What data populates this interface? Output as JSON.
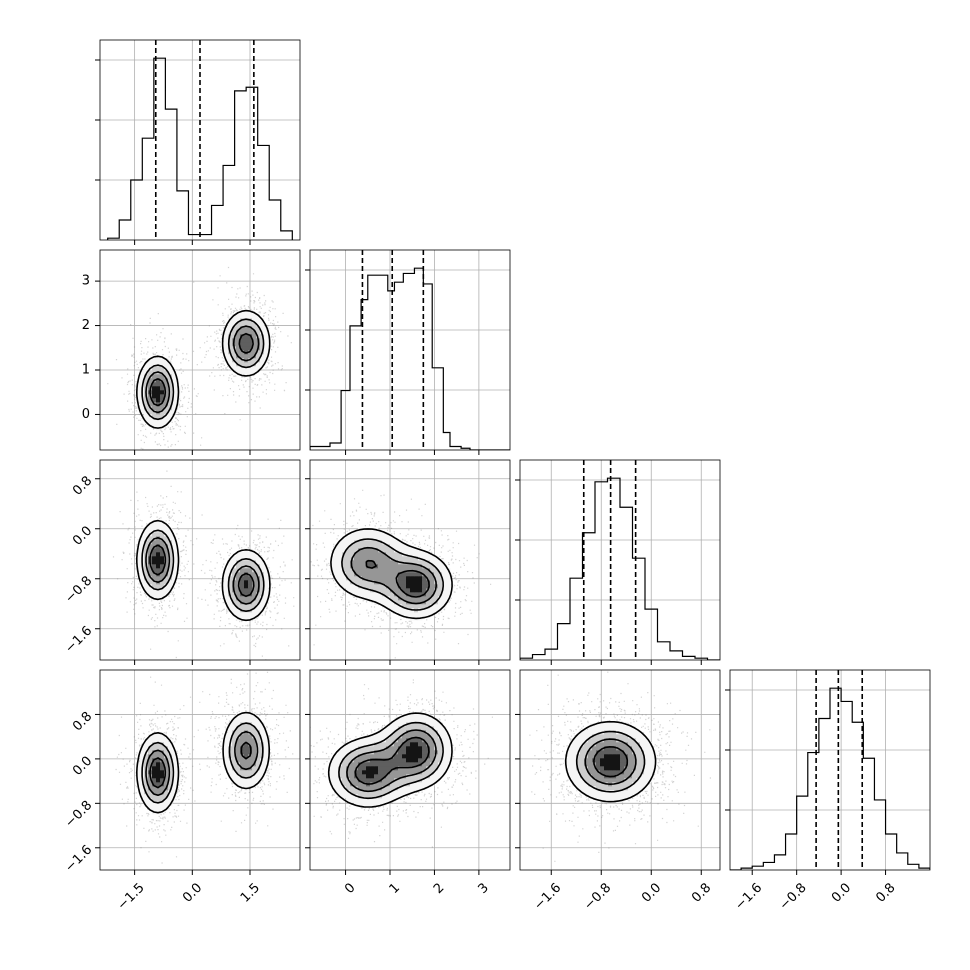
{
  "chart_data": {
    "type": "corner",
    "title": "",
    "grid": true,
    "colors": {
      "line": "#000000",
      "grid": "#b0b0b0",
      "points": "#808080"
    },
    "parameters": [
      {
        "index": 0,
        "range": [
          -2.4,
          2.8
        ],
        "ticks": [
          -1.5,
          0.0,
          1.5
        ],
        "tick_labels": [
          "−1.5",
          "0.0",
          "1.5"
        ],
        "quantiles": [
          -0.95,
          0.2,
          1.6
        ],
        "histogram": {
          "bin_edges": [
            -2.2,
            -1.9,
            -1.6,
            -1.3,
            -1.0,
            -0.7,
            -0.4,
            -0.1,
            0.2,
            0.5,
            0.8,
            1.1,
            1.4,
            1.7,
            2.0,
            2.3,
            2.6
          ],
          "counts": [
            0.1,
            1.1,
            3.3,
            5.6,
            10.0,
            7.2,
            2.7,
            0.3,
            0.3,
            1.9,
            4.1,
            8.2,
            8.4,
            5.2,
            2.2,
            0.5
          ]
        }
      },
      {
        "index": 1,
        "range": [
          -0.8,
          3.7
        ],
        "ticks": [
          0,
          1,
          2,
          3
        ],
        "tick_labels": [
          "0",
          "1",
          "2",
          "3"
        ],
        "quantiles": [
          0.38,
          1.05,
          1.75
        ],
        "histogram": {
          "bin_edges": [
            -0.8,
            -0.35,
            -0.1,
            0.1,
            0.35,
            0.5,
            0.75,
            0.95,
            1.1,
            1.3,
            1.55,
            1.75,
            1.95,
            2.2,
            2.35,
            2.6,
            2.8,
            3.7
          ],
          "counts": [
            0.2,
            0.4,
            3.4,
            7.1,
            8.6,
            10.0,
            10.0,
            9.1,
            9.6,
            10.1,
            10.4,
            9.5,
            4.7,
            1.0,
            0.2,
            0.1,
            0.0
          ]
        }
      },
      {
        "index": 2,
        "range": [
          -2.1,
          1.1
        ],
        "ticks": [
          -1.6,
          -0.8,
          0.0,
          0.8
        ],
        "tick_labels": [
          "−1.6",
          "−0.8",
          "0.0",
          "0.8"
        ],
        "quantiles": [
          -1.08,
          -0.65,
          -0.25
        ],
        "histogram": {
          "bin_edges": [
            -2.1,
            -1.9,
            -1.7,
            -1.5,
            -1.3,
            -1.1,
            -0.9,
            -0.7,
            -0.5,
            -0.3,
            -0.1,
            0.1,
            0.3,
            0.5,
            0.7,
            0.9,
            1.1
          ],
          "counts": [
            0.1,
            0.3,
            0.6,
            2.0,
            4.5,
            7.0,
            9.8,
            10.0,
            8.4,
            5.6,
            2.8,
            1.0,
            0.5,
            0.2,
            0.1,
            0.0
          ]
        }
      },
      {
        "index": 3,
        "range": [
          -2.0,
          1.6
        ],
        "ticks": [
          -1.6,
          -0.8,
          0.0,
          0.8
        ],
        "tick_labels": [
          "−1.6",
          "−0.8",
          "0.0",
          "0.8"
        ],
        "quantiles": [
          -0.45,
          -0.05,
          0.38
        ],
        "histogram": {
          "bin_edges": [
            -2.0,
            -1.8,
            -1.6,
            -1.4,
            -1.2,
            -1.0,
            -0.8,
            -0.6,
            -0.4,
            -0.2,
            0.0,
            0.2,
            0.4,
            0.6,
            0.8,
            1.0,
            1.2,
            1.4,
            1.6
          ],
          "counts": [
            0.0,
            0.1,
            0.2,
            0.4,
            0.8,
            1.9,
            3.9,
            6.2,
            8.0,
            9.6,
            8.9,
            7.8,
            5.9,
            3.7,
            1.9,
            0.9,
            0.3,
            0.1
          ]
        }
      }
    ],
    "pairs": [
      {
        "x": 0,
        "y": 1,
        "clusters": [
          {
            "mx": -0.9,
            "my": 0.5,
            "sx": 0.3,
            "sy": 0.45,
            "rho": 0.0,
            "w": 0.5
          },
          {
            "mx": 1.4,
            "my": 1.6,
            "sx": 0.35,
            "sy": 0.42,
            "rho": 0.0,
            "w": 0.5
          }
        ]
      },
      {
        "x": 0,
        "y": 2,
        "clusters": [
          {
            "mx": -0.9,
            "my": -0.5,
            "sx": 0.3,
            "sy": 0.35,
            "rho": 0.0,
            "w": 0.5
          },
          {
            "mx": 1.4,
            "my": -0.9,
            "sx": 0.35,
            "sy": 0.32,
            "rho": 0.0,
            "w": 0.5
          }
        ]
      },
      {
        "x": 0,
        "y": 3,
        "clusters": [
          {
            "mx": -0.9,
            "my": -0.25,
            "sx": 0.3,
            "sy": 0.4,
            "rho": 0.0,
            "w": 0.5
          },
          {
            "mx": 1.4,
            "my": 0.15,
            "sx": 0.35,
            "sy": 0.4,
            "rho": 0.0,
            "w": 0.5
          }
        ]
      },
      {
        "x": 1,
        "y": 2,
        "clusters": [
          {
            "mx": 0.5,
            "my": -0.55,
            "sx": 0.5,
            "sy": 0.33,
            "rho": 0.0,
            "w": 0.5
          },
          {
            "mx": 1.6,
            "my": -0.9,
            "sx": 0.45,
            "sy": 0.3,
            "rho": 0.0,
            "w": 0.5
          }
        ]
      },
      {
        "x": 1,
        "y": 3,
        "clusters": [
          {
            "mx": 0.5,
            "my": -0.25,
            "sx": 0.5,
            "sy": 0.35,
            "rho": 0.0,
            "w": 0.5
          },
          {
            "mx": 1.6,
            "my": 0.15,
            "sx": 0.45,
            "sy": 0.38,
            "rho": 0.0,
            "w": 0.5
          }
        ]
      },
      {
        "x": 2,
        "y": 3,
        "clusters": [
          {
            "mx": -0.65,
            "my": -0.05,
            "sx": 0.4,
            "sy": 0.4,
            "rho": 0.0,
            "w": 1.0
          }
        ]
      }
    ],
    "contour_levels": [
      0.2,
      0.4,
      0.6,
      0.8
    ]
  }
}
